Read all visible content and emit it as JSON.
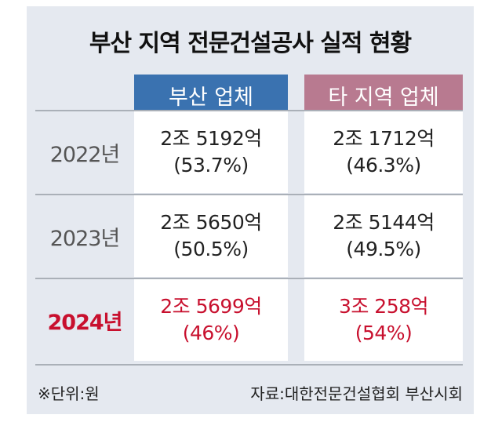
{
  "title": "부산 지역 전문건설공사 실적 현황",
  "columns": [
    "부산 업체",
    "타 지역 업체"
  ],
  "rows": [
    {
      "year": "2022년",
      "busan": {
        "amount": "2조 5192억",
        "share": "(53.7%)"
      },
      "other": {
        "amount": "2조 1712억",
        "share": "(46.3%)"
      }
    },
    {
      "year": "2023년",
      "busan": {
        "amount": "2조 5650억",
        "share": "(50.5%)"
      },
      "other": {
        "amount": "2조 5144억",
        "share": "(49.5%)"
      }
    },
    {
      "year": "2024년",
      "busan": {
        "amount": "2조 5699억",
        "share": "(46%)"
      },
      "other": {
        "amount": "3조 258억",
        "share": "(54%)"
      }
    }
  ],
  "footer": {
    "unit": "※단위:원",
    "source": "자료:대한전문건설협회 부산시회"
  },
  "colors": {
    "busan": "#3a72b0",
    "other": "#b87a90",
    "highlight": "#c8102e"
  }
}
